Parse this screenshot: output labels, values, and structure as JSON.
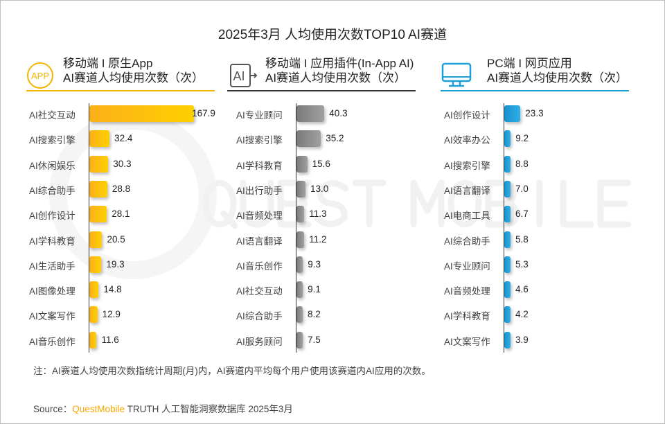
{
  "chart_data": [
    {
      "type": "bar",
      "orientation": "horizontal",
      "title": "移动端 I 原生App AI赛道人均使用次数（次）",
      "color": "#fbbf16",
      "categories": [
        "AI社交互动",
        "AI搜索引擎",
        "AI休闲娱乐",
        "AI综合助手",
        "AI创作设计",
        "AI学科教育",
        "AI生活助手",
        "AI图像处理",
        "AI文案写作",
        "AI音乐创作"
      ],
      "values": [
        167.9,
        32.4,
        30.3,
        28.8,
        28.1,
        20.5,
        19.3,
        14.8,
        12.9,
        11.6
      ]
    },
    {
      "type": "bar",
      "orientation": "horizontal",
      "title": "移动端 I 应用插件(In-App AI) AI赛道人均使用次数（次）",
      "color": "#8c8c8c",
      "categories": [
        "AI专业顾问",
        "AI搜索引擎",
        "AI学科教育",
        "AI出行助手",
        "AI音频处理",
        "AI语言翻译",
        "AI音乐创作",
        "AI社交互动",
        "AI综合助手",
        "AI服务顾问"
      ],
      "values": [
        40.3,
        35.2,
        15.6,
        13.0,
        11.3,
        11.2,
        9.3,
        9.1,
        8.2,
        7.5
      ]
    },
    {
      "type": "bar",
      "orientation": "horizontal",
      "title": "PC端 I 网页应用 AI赛道人均使用次数（次）",
      "color": "#1e9fd8",
      "categories": [
        "AI创作设计",
        "AI效率办公",
        "AI搜索引擎",
        "AI语言翻译",
        "AI电商工具",
        "AI综合助手",
        "AI专业顾问",
        "AI音频处理",
        "AI学科教育",
        "AI文案写作"
      ],
      "values": [
        23.3,
        9.2,
        8.8,
        7.0,
        6.7,
        5.8,
        5.3,
        4.6,
        4.2,
        3.9
      ]
    }
  ],
  "title": "2025年3月 人均使用次数TOP10 AI赛道",
  "panels": [
    {
      "line1": "移动端 I 原生App",
      "line2": "AI赛道人均使用次数（次）",
      "icon": "app-icon",
      "icon_text": "APP",
      "accent": "#f5b400"
    },
    {
      "line1": "移动端 I 应用插件(In-App AI)",
      "line2": "AI赛道人均使用次数（次）",
      "icon": "ai-plugin-icon",
      "icon_text": "AI",
      "accent": "#333333"
    },
    {
      "line1": "PC端 I 网页应用",
      "line2": "AI赛道人均使用次数（次）",
      "icon": "monitor-icon",
      "accent": "#1e9fd8"
    }
  ],
  "note": "注：AI赛道人均使用次数指统计周期(月)内，AI赛道内平均每个用户使用该赛道内AI应用的次数。",
  "source": {
    "prefix": "Source：",
    "brand": "QuestMobile",
    "rest": " TRUTH 人工智能洞察数据库 2025年3月"
  },
  "watermark": "QUEST MOBILE"
}
